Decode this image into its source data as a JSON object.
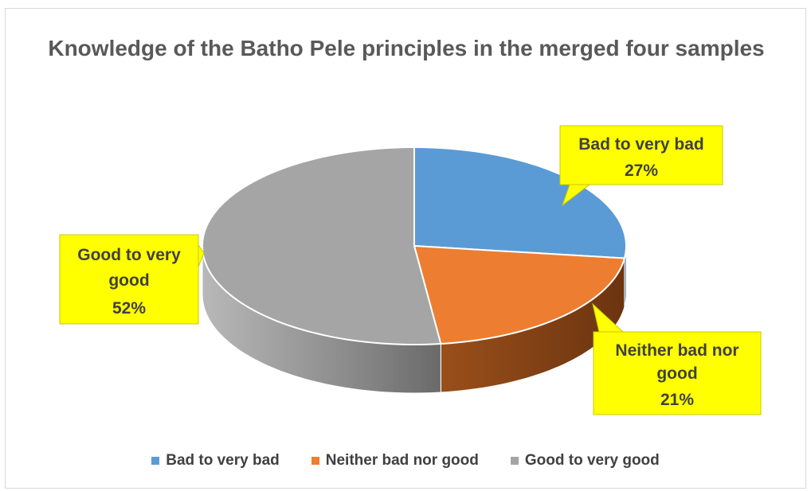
{
  "chart_data": {
    "type": "pie",
    "title": "Knowledge of the Batho Pele principles in the merged four samples",
    "categories": [
      "Bad to very bad",
      "Neither bad nor good",
      "Good to very good"
    ],
    "values": [
      27,
      21,
      52
    ],
    "value_suffix": "%",
    "colors": [
      "#5b9bd5",
      "#ed7d31",
      "#a5a5a5"
    ],
    "side_colors": [
      "#3b6e99",
      "#8a4516",
      "#7a7a7a"
    ],
    "data_labels": [
      {
        "lines": [
          "Bad to very bad"
        ],
        "value": "27%"
      },
      {
        "lines": [
          "Neither bad nor",
          "good"
        ],
        "value": "21%"
      },
      {
        "lines": [
          "Good to very",
          "good"
        ],
        "value": "52%"
      }
    ],
    "label_box_color": "#ffff00",
    "legend_position": "bottom",
    "style": "3d"
  }
}
